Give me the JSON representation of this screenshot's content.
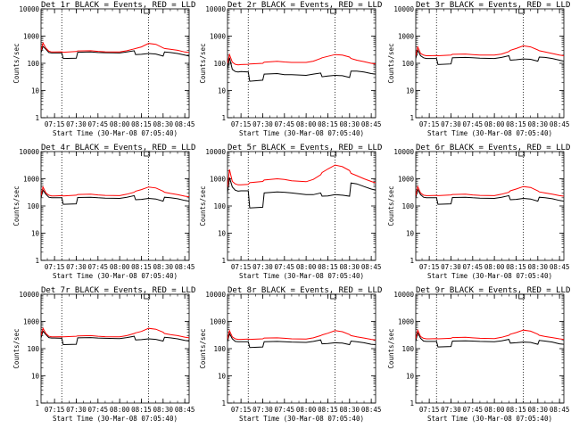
{
  "chart_data": {
    "type": "line",
    "layout": "3x3 grid",
    "y_scale": "log",
    "ylim": [
      1,
      10000
    ],
    "y_ticks": [
      "1",
      "10",
      "100",
      "1000",
      "10000"
    ],
    "ylabel": "Counts/sec",
    "xlabel": "Start Time (30-Mar-08 07:05:40)",
    "x_ticks": [
      "07:15",
      "07:30",
      "07:45",
      "08:00",
      "08:15",
      "08:30",
      "08:45"
    ],
    "x_range": [
      "07:05:40",
      "08:48"
    ],
    "vertical_markers": [
      "07:20",
      "08:20"
    ],
    "series_colors": {
      "black": "#000000",
      "red": "#ff0000"
    },
    "x_sample_times": [
      "07:05:40",
      "07:07",
      "07:09",
      "07:11",
      "07:13",
      "07:15",
      "07:20",
      "07:21",
      "07:30",
      "07:31",
      "07:40",
      "07:45",
      "07:50",
      "08:00",
      "08:05",
      "08:10",
      "08:11",
      "08:15",
      "08:20",
      "08:25",
      "08:30",
      "08:31",
      "08:35",
      "08:40",
      "08:45",
      "08:48"
    ],
    "panels": [
      {
        "title": "Det 1r BLACK = Events, RED = LLD",
        "series": [
          {
            "color": "black",
            "values": [
              250,
              420,
              330,
              250,
              240,
              240,
              240,
              150,
              155,
              255,
              260,
              250,
              245,
              240,
              260,
              290,
              210,
              215,
              230,
              220,
              185,
              260,
              250,
              230,
              200,
              185
            ]
          },
          {
            "color": "red",
            "values": [
              300,
              560,
              360,
              280,
              260,
              260,
              265,
              255,
              270,
              285,
              290,
              275,
              265,
              260,
              290,
              340,
              350,
              400,
              540,
              500,
              370,
              350,
              330,
              300,
              260,
              250
            ]
          }
        ]
      },
      {
        "title": "Det 2r BLACK = Events, RED = LLD",
        "series": [
          {
            "color": "black",
            "values": [
              60,
              160,
              60,
              50,
              48,
              50,
              48,
              22,
              24,
              40,
              42,
              38,
              38,
              36,
              40,
              44,
              32,
              34,
              36,
              35,
              30,
              52,
              52,
              48,
              42,
              40
            ]
          },
          {
            "color": "red",
            "values": [
              100,
              210,
              110,
              92,
              88,
              90,
              92,
              95,
              100,
              110,
              118,
              112,
              108,
              108,
              120,
              150,
              160,
              180,
              210,
              200,
              170,
              150,
              130,
              115,
              100,
              95
            ]
          }
        ]
      },
      {
        "title": "Det 3r BLACK = Events, RED = LLD",
        "series": [
          {
            "color": "black",
            "values": [
              150,
              300,
              190,
              160,
              150,
              150,
              150,
              90,
              95,
              160,
              165,
              160,
              155,
              150,
              165,
              190,
              130,
              135,
              145,
              140,
              120,
              170,
              165,
              150,
              130,
              120
            ]
          },
          {
            "color": "red",
            "values": [
              190,
              400,
              230,
              200,
              190,
              190,
              195,
              190,
              200,
              215,
              220,
              210,
              200,
              200,
              220,
              270,
              300,
              350,
              440,
              400,
              310,
              290,
              260,
              230,
              200,
              190
            ]
          }
        ]
      },
      {
        "title": "Det 4r BLACK = Events, RED = LLD",
        "series": [
          {
            "color": "black",
            "values": [
              200,
              380,
              270,
              210,
              200,
              200,
              200,
              115,
              120,
              205,
              210,
              200,
              195,
              190,
              210,
              240,
              170,
              175,
              190,
              180,
              150,
              210,
              200,
              185,
              160,
              150
            ]
          },
          {
            "color": "red",
            "values": [
              240,
              500,
              300,
              250,
              235,
              235,
              240,
              235,
              250,
              265,
              270,
              255,
              245,
              240,
              270,
              320,
              350,
              400,
              500,
              460,
              350,
              320,
              290,
              260,
              230,
              220
            ]
          }
        ]
      },
      {
        "title": "Det 5r BLACK = Events, RED = LLD",
        "series": [
          {
            "color": "black",
            "values": [
              300,
              1100,
              500,
              380,
              350,
              360,
              360,
              85,
              90,
              300,
              330,
              320,
              300,
              260,
              260,
              300,
              230,
              235,
              260,
              250,
              230,
              700,
              650,
              520,
              420,
              380
            ]
          },
          {
            "color": "red",
            "values": [
              500,
              2200,
              800,
              650,
              600,
              600,
              620,
              720,
              800,
              900,
              1000,
              950,
              850,
              780,
              950,
              1400,
              1700,
              2300,
              3200,
              2800,
              2000,
              1600,
              1300,
              1000,
              800,
              700
            ]
          }
        ]
      },
      {
        "title": "Det 6r BLACK = Events, RED = LLD",
        "series": [
          {
            "color": "black",
            "values": [
              200,
              400,
              260,
              210,
              200,
              200,
              200,
              115,
              120,
              205,
              210,
              200,
              195,
              190,
              210,
              240,
              170,
              175,
              190,
              180,
              150,
              210,
              200,
              185,
              160,
              150
            ]
          },
          {
            "color": "red",
            "values": [
              240,
              520,
              300,
              250,
              240,
              240,
              245,
              240,
              255,
              265,
              270,
              255,
              245,
              240,
              270,
              320,
              360,
              420,
              520,
              480,
              360,
              330,
              300,
              270,
              240,
              230
            ]
          }
        ]
      },
      {
        "title": "Det 7r BLACK = Events, RED = LLD",
        "series": [
          {
            "color": "black",
            "values": [
              250,
              440,
              330,
              255,
              245,
              245,
              240,
              140,
              145,
              250,
              255,
              245,
              240,
              235,
              255,
              285,
              210,
              215,
              230,
              220,
              190,
              260,
              250,
              230,
              200,
              190
            ]
          },
          {
            "color": "red",
            "values": [
              300,
              560,
              360,
              285,
              270,
              270,
              275,
              270,
              285,
              295,
              300,
              285,
              275,
              270,
              300,
              360,
              380,
              430,
              560,
              520,
              400,
              360,
              330,
              300,
              265,
              250
            ]
          }
        ]
      },
      {
        "title": "Det 8r BLACK = Events, RED = LLD",
        "series": [
          {
            "color": "black",
            "values": [
              180,
              360,
              230,
              185,
              180,
              180,
              180,
              110,
              115,
              180,
              185,
              180,
              175,
              170,
              185,
              210,
              150,
              155,
              165,
              160,
              140,
              190,
              180,
              165,
              145,
              140
            ]
          },
          {
            "color": "red",
            "values": [
              220,
              460,
              270,
              230,
              220,
              220,
              225,
              220,
              230,
              245,
              250,
              240,
              230,
              225,
              250,
              300,
              320,
              370,
              460,
              420,
              330,
              300,
              270,
              245,
              220,
              210
            ]
          }
        ]
      },
      {
        "title": "Det 9r BLACK = Events, RED = LLD",
        "series": [
          {
            "color": "black",
            "values": [
              190,
              380,
              240,
              190,
              185,
              185,
              185,
              115,
              120,
              190,
              195,
              190,
              185,
              180,
              195,
              220,
              160,
              165,
              175,
              170,
              145,
              200,
              190,
              175,
              150,
              145
            ]
          },
          {
            "color": "red",
            "values": [
              230,
              480,
              280,
              240,
              230,
              230,
              235,
              230,
              240,
              255,
              260,
              250,
              240,
              235,
              260,
              310,
              340,
              390,
              480,
              440,
              340,
              310,
              280,
              255,
              230,
              220
            ]
          }
        ]
      }
    ]
  }
}
